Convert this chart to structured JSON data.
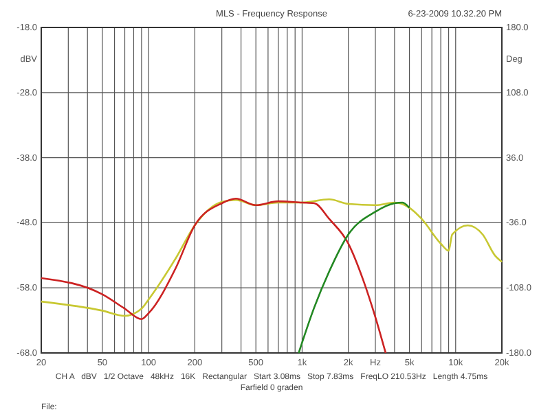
{
  "chart_data": {
    "type": "line",
    "title": "MLS - Frequency Response",
    "subtitle": "6-23-2009 10.32.20 PM",
    "ylabel": "dBV",
    "y2label": "Deg",
    "annotations": [
      "CH A   dBV   1/2 Octave   48kHz   16K   Rectangular   Start 3.08ms   Stop 7.83ms   FreqLO 210.53Hz   Length 4.75ms",
      "Farfield 0 graden",
      "File:"
    ],
    "log": "x",
    "grid": true,
    "line_style": "solid",
    "xlim": [
      20,
      20000
    ],
    "ylim": [
      -68,
      -18
    ],
    "y2lim": [
      -180,
      180
    ],
    "xticks": [
      20,
      {
        "value": 30,
        "label": null
      },
      {
        "value": 40,
        "label": null
      },
      50,
      {
        "value": 60,
        "label": null
      },
      {
        "value": 70,
        "label": null
      },
      {
        "value": 80,
        "label": null
      },
      {
        "value": 90,
        "label": null
      },
      100,
      200,
      {
        "value": 300,
        "label": null
      },
      {
        "value": 400,
        "label": null
      },
      500,
      {
        "value": 600,
        "label": null
      },
      {
        "value": 700,
        "label": null
      },
      {
        "value": 800,
        "label": null
      },
      {
        "value": 900,
        "label": null
      },
      {
        "value": 1000,
        "label": "1k"
      },
      {
        "value": 2000,
        "label": "2k"
      },
      {
        "value": 3000,
        "label": "Hz"
      },
      {
        "value": 4000,
        "label": null
      },
      {
        "value": 5000,
        "label": "5k"
      },
      {
        "value": 6000,
        "label": null
      },
      {
        "value": 7000,
        "label": null
      },
      {
        "value": 8000,
        "label": null
      },
      {
        "value": 9000,
        "label": null
      },
      {
        "value": 10000,
        "label": "10k"
      },
      {
        "value": 20000,
        "label": "20k"
      }
    ],
    "yticks": [
      {
        "value": -68,
        "label": "-68.0"
      },
      {
        "value": -58,
        "label": "-58.0"
      },
      {
        "value": -48,
        "label": "-48.0"
      },
      {
        "value": -38,
        "label": "-38.0"
      },
      {
        "value": -28,
        "label": "-28.0"
      },
      {
        "value": -18,
        "label": "-18.0"
      }
    ],
    "y2ticks": [
      {
        "value": -180,
        "label": "-180.0"
      },
      {
        "value": -108,
        "label": "-108.0"
      },
      {
        "value": -36,
        "label": "-36.0"
      },
      {
        "value": 36,
        "label": "36.0"
      },
      {
        "value": 108,
        "label": "108.0"
      },
      {
        "value": 180,
        "label": "180.0"
      }
    ],
    "series": [
      {
        "color": "#c8c832",
        "x": [
          20,
          50,
          70,
          90,
          100,
          150,
          200,
          300,
          370,
          500,
          700,
          1000,
          1500,
          2000,
          3000,
          4000,
          5000,
          6000,
          8000,
          9000,
          9500,
          12000,
          15000,
          18000,
          20000
        ],
        "values": [
          -60.1,
          -61.5,
          -62.3,
          -61.2,
          -59.8,
          -53.5,
          -48.4,
          -44.8,
          -44.5,
          -45.3,
          -44.9,
          -44.9,
          -44.4,
          -45.1,
          -45.3,
          -44.9,
          -45.7,
          -47.4,
          -51.2,
          -52.3,
          -49.8,
          -48.4,
          -49.8,
          -53,
          -54
        ]
      },
      {
        "color": "#cc2222",
        "x": [
          20,
          50,
          70,
          90,
          100,
          150,
          200,
          300,
          370,
          500,
          700,
          1000,
          1200,
          1500,
          2000,
          2500,
          3000,
          3500
        ],
        "values": [
          -56.5,
          -59,
          -61.2,
          -62.8,
          -61.9,
          -55,
          -48.4,
          -45,
          -44.3,
          -45.3,
          -44.7,
          -44.9,
          -45,
          -47.4,
          -51.2,
          -56.8,
          -62.5,
          -68
        ]
      },
      {
        "color": "#228822",
        "x": [
          950,
          1200,
          1500,
          2000,
          3000,
          4000,
          4500,
          5000
        ],
        "values": [
          -68,
          -61,
          -55.5,
          -49.8,
          -46.3,
          -45,
          -44.9,
          -45.7
        ]
      }
    ]
  }
}
